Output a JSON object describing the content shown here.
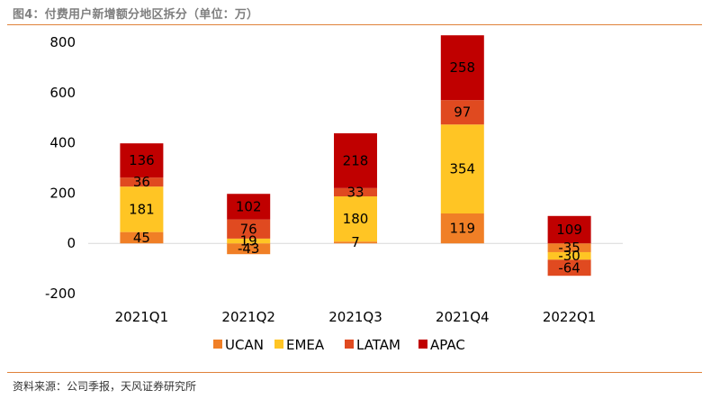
{
  "header": {
    "title": "图4：付费用户新增额分地区拆分（单位：万）"
  },
  "footer": {
    "source": "资料来源：公司季报，天风证券研究所"
  },
  "chart_data": {
    "type": "bar",
    "stacked": true,
    "categories": [
      "2021Q1",
      "2021Q2",
      "2021Q3",
      "2021Q4",
      "2022Q1"
    ],
    "series": [
      {
        "name": "UCAN",
        "color": "#f07f26",
        "values": [
          45,
          -43,
          7,
          119,
          -35
        ]
      },
      {
        "name": "EMEA",
        "color": "#ffc524",
        "values": [
          181,
          19,
          180,
          354,
          -30
        ]
      },
      {
        "name": "LATAM",
        "color": "#e04a20",
        "values": [
          36,
          76,
          33,
          97,
          -64
        ]
      },
      {
        "name": "APAC",
        "color": "#c00000",
        "values": [
          136,
          102,
          218,
          258,
          109
        ]
      }
    ],
    "ylim": [
      -200,
      800
    ],
    "yticks": [
      -200,
      0,
      200,
      400,
      600,
      800
    ],
    "grid": false,
    "legend_position": "bottom"
  }
}
